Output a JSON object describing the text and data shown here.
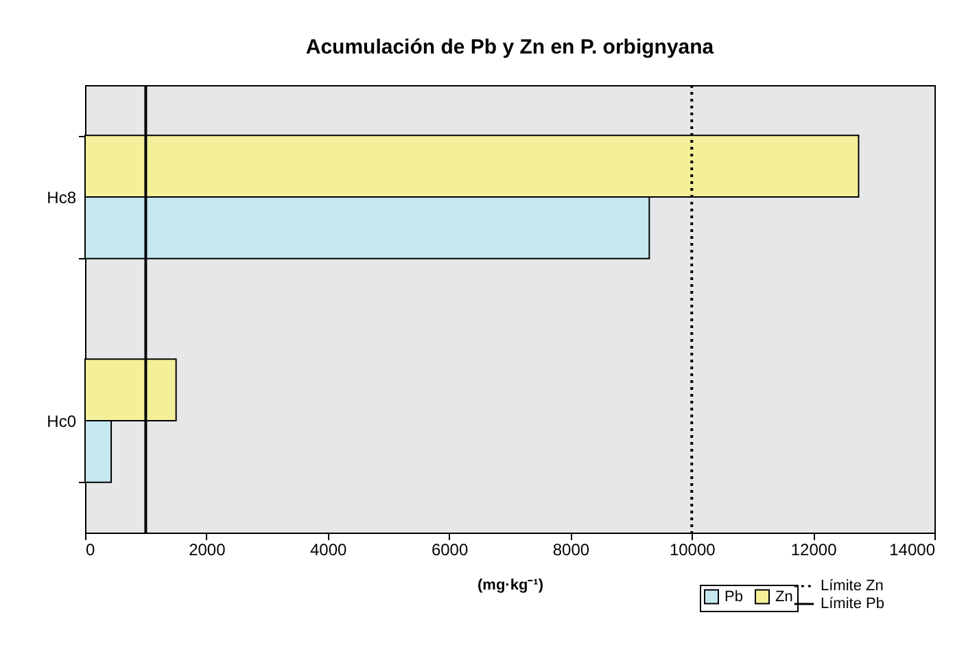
{
  "chart_data": {
    "type": "bar",
    "orientation": "horizontal",
    "title": "Acumulación de Pb y Zn en P. orbignyana",
    "xlabel": "(mg·kg⁻¹)",
    "categories": [
      "Hc8",
      "Hc0"
    ],
    "series": [
      {
        "name": "Pb",
        "color": "#c5e8f0",
        "values": [
          9300,
          430
        ]
      },
      {
        "name": "Zn",
        "color": "#f4f09a",
        "values": [
          12750,
          1500
        ]
      }
    ],
    "xlim": [
      0,
      14000
    ],
    "xticks": [
      0,
      2000,
      4000,
      6000,
      8000,
      10000,
      12000,
      14000
    ],
    "ref_lines": [
      {
        "axis": "x",
        "value": 10000,
        "label": "Límite Zn",
        "line_style": "dotted",
        "color": "#000000"
      },
      {
        "axis": "x",
        "value": 1000,
        "label": "Límite Pb",
        "line_style": "solid",
        "color": "#000000"
      }
    ],
    "legend": "bottom right"
  }
}
